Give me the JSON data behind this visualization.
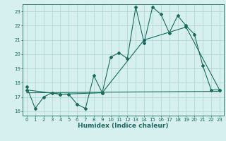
{
  "title": "",
  "xlabel": "Humidex (Indice chaleur)",
  "bg_color": "#d6f0ef",
  "grid_color": "#b0d8d5",
  "line_color": "#1a6b5e",
  "xlim": [
    -0.5,
    23.5
  ],
  "ylim": [
    15.7,
    23.5
  ],
  "yticks": [
    16,
    17,
    18,
    19,
    20,
    21,
    22,
    23
  ],
  "xticks": [
    0,
    1,
    2,
    3,
    4,
    5,
    6,
    7,
    8,
    9,
    10,
    11,
    12,
    13,
    14,
    15,
    16,
    17,
    18,
    19,
    20,
    21,
    22,
    23
  ],
  "series1_x": [
    0,
    1,
    2,
    3,
    4,
    5,
    6,
    7,
    8,
    9,
    10,
    11,
    12,
    13,
    14,
    15,
    16,
    17,
    18,
    19,
    20,
    21,
    22,
    23
  ],
  "series1_y": [
    17.7,
    16.2,
    17.0,
    17.3,
    17.2,
    17.2,
    16.5,
    16.2,
    18.5,
    17.3,
    19.8,
    20.1,
    19.7,
    23.3,
    20.8,
    23.3,
    22.8,
    21.5,
    22.7,
    22.0,
    21.4,
    19.2,
    17.5,
    17.5
  ],
  "series2_x": [
    0,
    4,
    9,
    14,
    19,
    23
  ],
  "series2_y": [
    17.5,
    17.2,
    17.3,
    21.0,
    21.9,
    17.5
  ],
  "series3_x": [
    0,
    23
  ],
  "series3_y": [
    17.3,
    17.4
  ],
  "tick_fontsize": 5.0,
  "xlabel_fontsize": 6.5,
  "marker_size": 2.0,
  "linewidth": 0.8
}
